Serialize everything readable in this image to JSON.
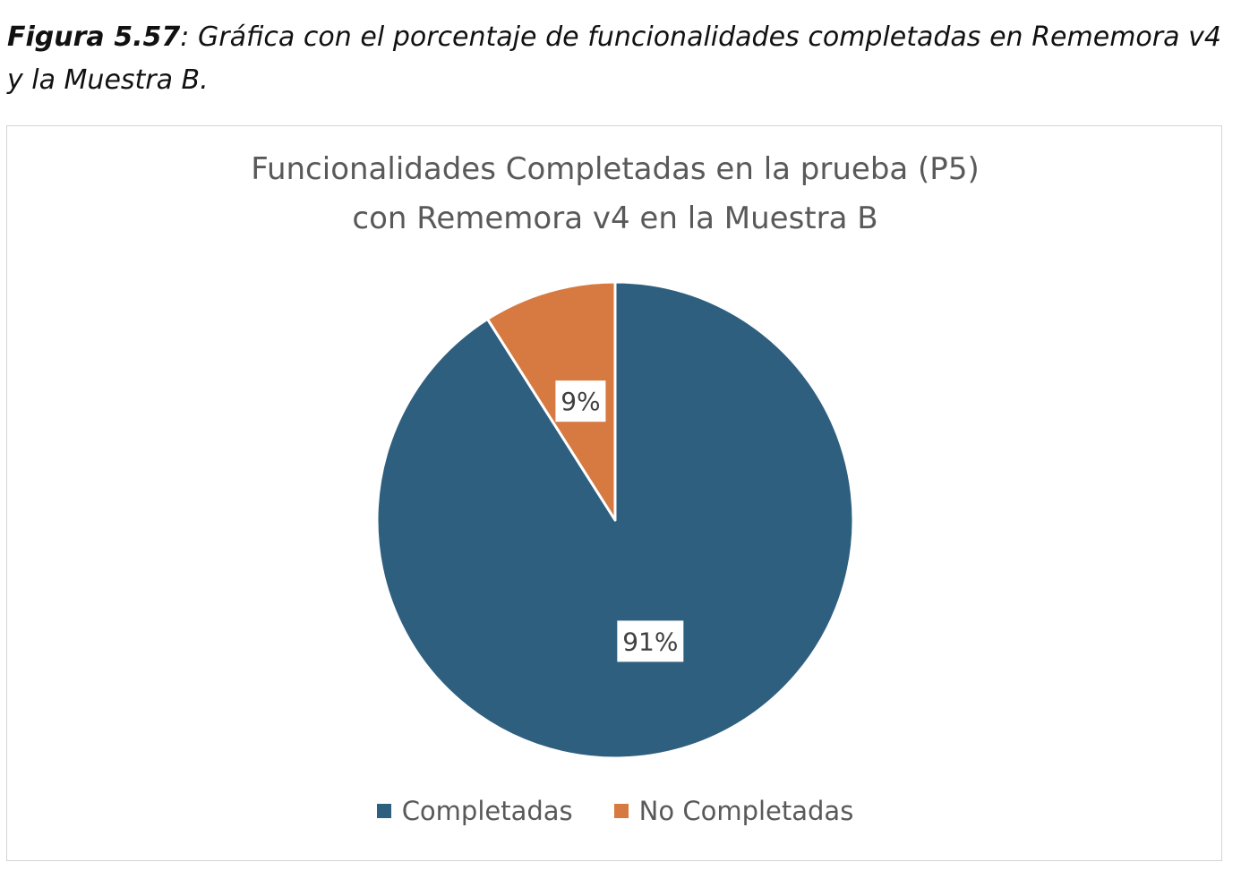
{
  "caption": {
    "figure_label": "Figura 5.57",
    "text": ": Gráfica con el porcentaje de funcionalidades completadas en Rememora v4 y la Muestra B."
  },
  "chart_data": {
    "type": "pie",
    "title_lines": [
      "Funcionalidades Completadas en la prueba (P5)",
      "con Rememora v4 en la Muestra B"
    ],
    "categories": [
      "Completadas",
      "No Completadas"
    ],
    "values": [
      91,
      9
    ],
    "labels": [
      "91%",
      "9%"
    ],
    "colors": [
      "#2e5f7f",
      "#d67a42"
    ],
    "legend_position": "bottom",
    "start_angle": "12 o'clock, clockwise"
  }
}
